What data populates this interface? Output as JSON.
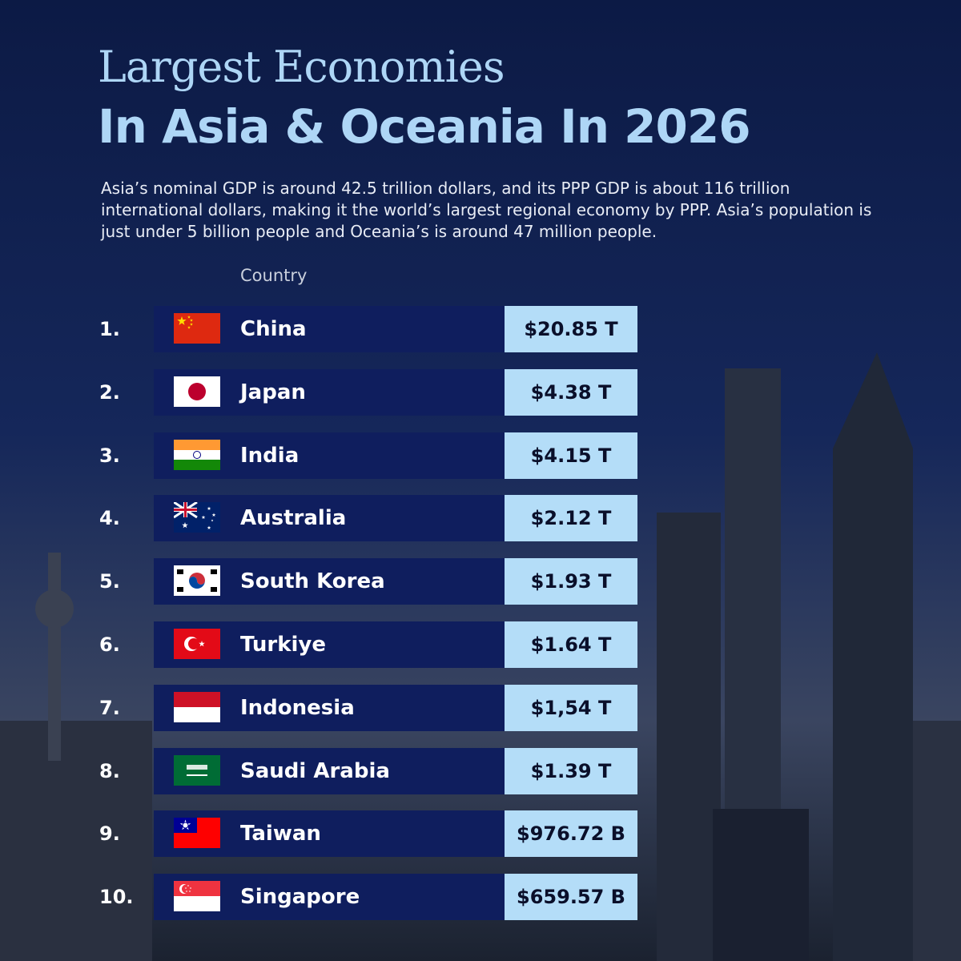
{
  "header": {
    "title_line1": "Largest Economies",
    "title_line2": "In Asia & Oceania In 2026",
    "description": "Asia’s nominal GDP is around 42.5 trillion dollars, and its PPP GDP is about 116 trillion international dollars, making it the world’s largest regional economy by PPP. Asia’s population is just under 5 billion people and Oceania’s is around 47 million people."
  },
  "table": {
    "columns": [
      "Country"
    ],
    "rows": [
      [
        "1.",
        "China",
        "$20.85 T"
      ],
      [
        "2.",
        "Japan",
        "$4.38 T"
      ],
      [
        "3.",
        "India",
        "$4.15 T"
      ],
      [
        "4.",
        "Australia",
        "$2.12 T"
      ],
      [
        "5.",
        "South Korea",
        "$1.93 T"
      ],
      [
        "6.",
        "Turkiye",
        "$1.64 T"
      ],
      [
        "7.",
        "Indonesia",
        "$1,54 T"
      ],
      [
        "8.",
        "Saudi Arabia",
        "$1.39 T"
      ],
      [
        "9.",
        "Taiwan",
        "$976.72 B"
      ],
      [
        "10.",
        "Singapore",
        "$659.57 B"
      ]
    ]
  }
}
